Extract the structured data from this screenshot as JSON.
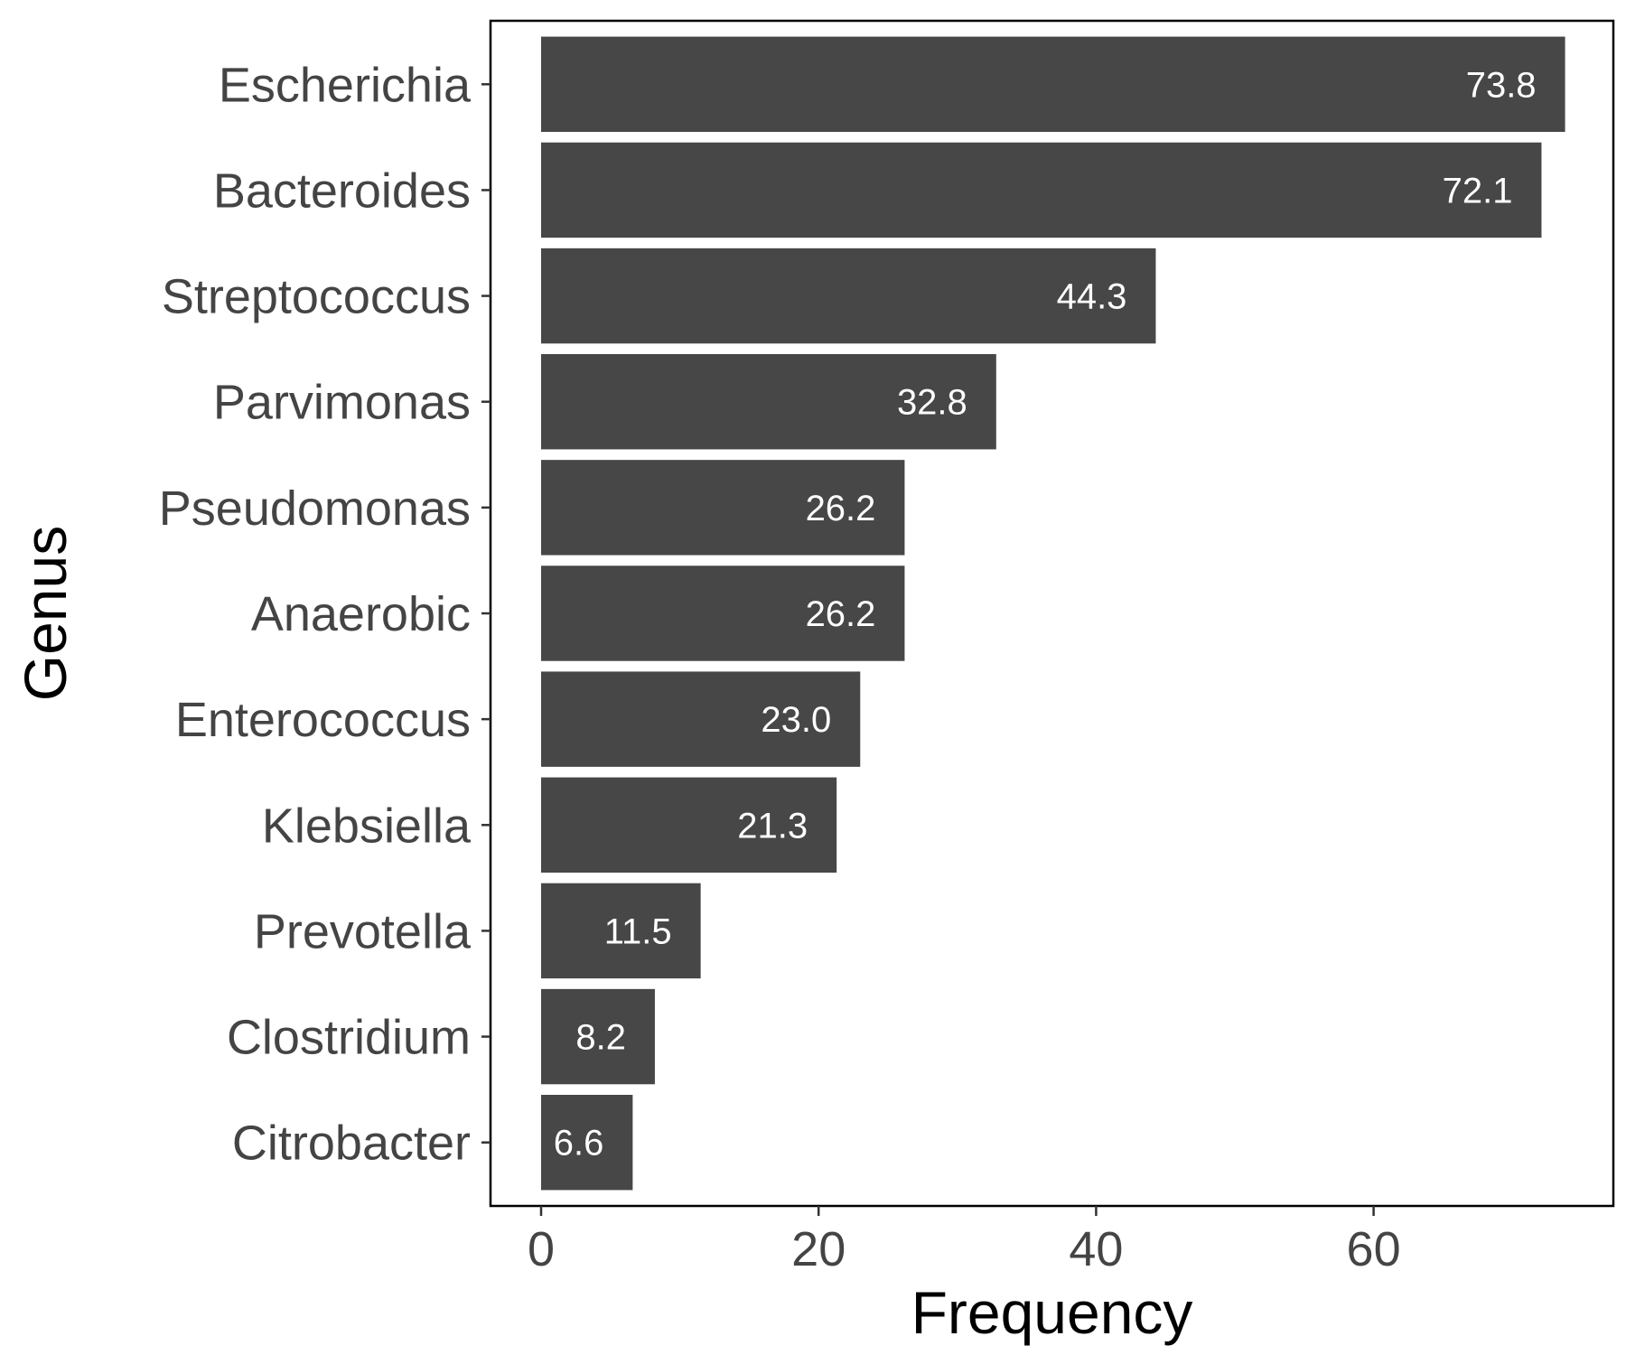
{
  "chart_data": {
    "type": "bar",
    "orientation": "horizontal",
    "xlabel": "Frequency",
    "ylabel": "Genus",
    "categories": [
      "Escherichia",
      "Bacteroides",
      "Streptococcus",
      "Parvimonas",
      "Pseudomonas",
      "Anaerobic",
      "Enterococcus",
      "Klebsiella",
      "Prevotella",
      "Clostridium",
      "Citrobacter"
    ],
    "values": [
      73.8,
      72.1,
      44.3,
      32.8,
      26.2,
      26.2,
      23.0,
      21.3,
      11.5,
      8.2,
      6.6
    ],
    "value_labels": [
      "73.8",
      "72.1",
      "44.3",
      "32.8",
      "26.2",
      "26.2",
      "23.0",
      "21.3",
      "11.5",
      "8.2",
      "6.6"
    ],
    "xticks": [
      0,
      20,
      40,
      60
    ],
    "xtick_labels": [
      "0",
      "20",
      "40",
      "60"
    ],
    "xlim": [
      -3.6,
      77.4
    ],
    "grid": false,
    "legend": "none",
    "colors": {
      "bar": "#474747",
      "bar_label": "#ffffff",
      "tick_label": "#444444",
      "axis_title": "#000000",
      "panel_border": "#000000"
    }
  }
}
